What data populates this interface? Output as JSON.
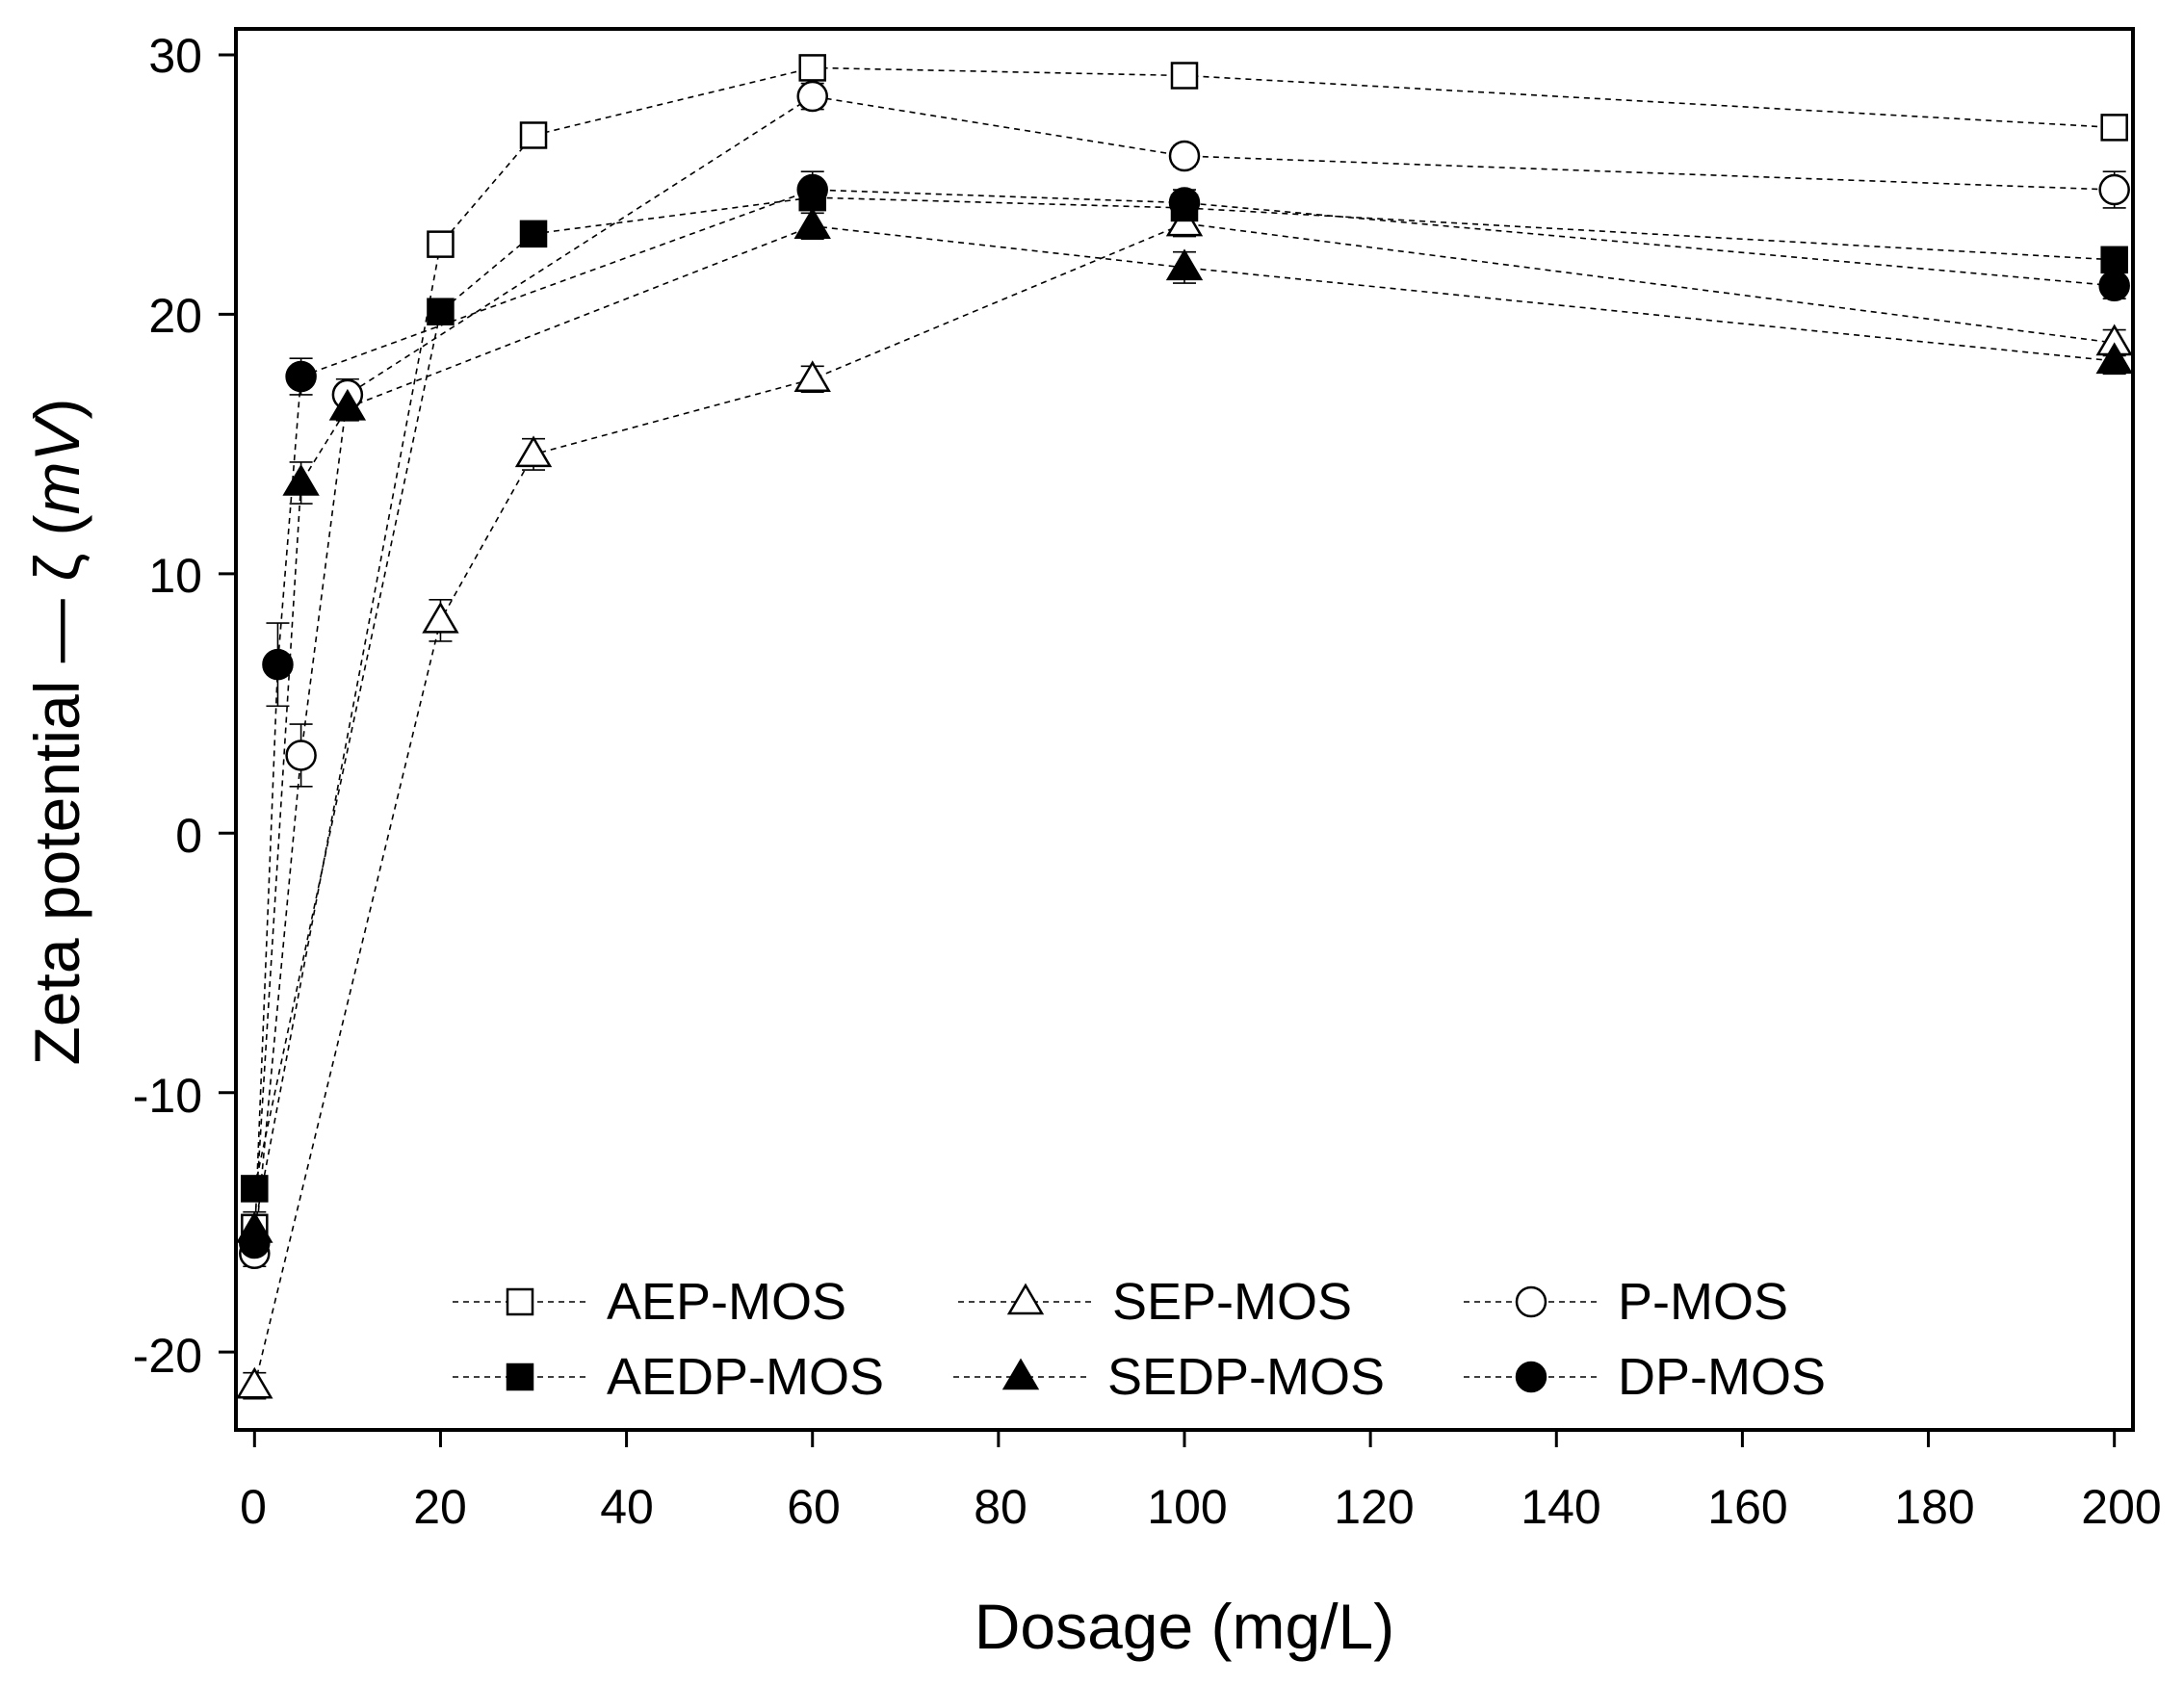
{
  "chart_data": {
    "type": "line",
    "title": "",
    "xlabel": "Dosage (mg/L)",
    "ylabel_main": "Zeta potential — ζ (",
    "ylabel_unit": "mV",
    "ylabel_close": ")",
    "xlim": [
      -2,
      202
    ],
    "ylim": [
      -23,
      31
    ],
    "xticks": [
      0,
      20,
      40,
      60,
      80,
      100,
      120,
      140,
      160,
      180,
      200
    ],
    "xtick_labels": [
      "0",
      "20",
      "40",
      "60",
      "80",
      "100",
      "120",
      "140",
      "160",
      "180",
      "200"
    ],
    "yticks": [
      -20,
      -10,
      0,
      10,
      20,
      30
    ],
    "ytick_labels": [
      "-20",
      "-10",
      "0",
      "10",
      "20",
      "30"
    ],
    "grid": false,
    "legend_position": "bottom-center",
    "series": [
      {
        "name": "AEP-MOS",
        "marker": "square",
        "filled": false,
        "x": [
          0,
          20,
          30,
          60,
          100,
          200
        ],
        "y": [
          -15.2,
          22.7,
          26.9,
          29.5,
          29.2,
          27.2
        ],
        "err": [
          0.6,
          0.4,
          0.4,
          0.4,
          0.4,
          0.4
        ]
      },
      {
        "name": "SEP-MOS",
        "marker": "triangle",
        "filled": false,
        "x": [
          0,
          20,
          30,
          60,
          100,
          200
        ],
        "y": [
          -21.3,
          8.2,
          14.6,
          17.5,
          23.5,
          18.9
        ],
        "err": [
          0.5,
          0.8,
          0.6,
          0.5,
          0.5,
          0.5
        ]
      },
      {
        "name": "P-MOS",
        "marker": "circle",
        "filled": false,
        "x": [
          0,
          5,
          10,
          60,
          100,
          200
        ],
        "y": [
          -16.2,
          3.0,
          16.9,
          28.4,
          26.1,
          24.8
        ],
        "err": [
          0.5,
          1.2,
          0.6,
          0.5,
          0.4,
          0.7
        ]
      },
      {
        "name": "AEDP-MOS",
        "marker": "square",
        "filled": true,
        "x": [
          0,
          20,
          30,
          60,
          100,
          200
        ],
        "y": [
          -13.7,
          20.1,
          23.1,
          24.5,
          24.1,
          22.1
        ],
        "err": [
          0.4,
          0.4,
          0.4,
          0.4,
          0.4,
          0.4
        ]
      },
      {
        "name": "SEDP-MOS",
        "marker": "triangle",
        "filled": true,
        "x": [
          0,
          5,
          10,
          60,
          100,
          200
        ],
        "y": [
          -15.3,
          13.5,
          16.4,
          23.4,
          21.8,
          18.2
        ],
        "err": [
          0.5,
          0.8,
          0.5,
          0.5,
          0.6,
          0.5
        ]
      },
      {
        "name": "DP-MOS",
        "marker": "circle",
        "filled": true,
        "x": [
          0,
          2.5,
          5,
          60,
          100,
          200
        ],
        "y": [
          -15.8,
          6.5,
          17.6,
          24.8,
          24.3,
          21.1
        ],
        "err": [
          0.5,
          1.6,
          0.7,
          0.7,
          0.5,
          0.5
        ]
      }
    ]
  }
}
